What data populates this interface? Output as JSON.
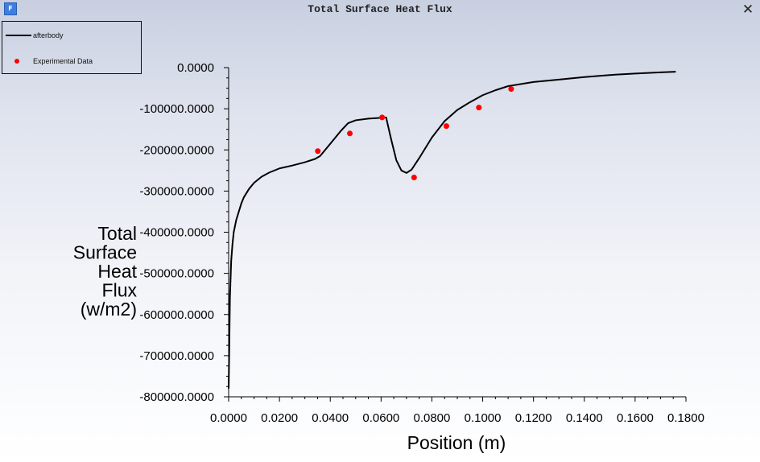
{
  "window": {
    "app_icon_glyph": "F",
    "title": "Total Surface Heat Flux",
    "close_glyph": "✕"
  },
  "legend": [
    {
      "label": "afterbody",
      "marker": "line",
      "color": "#000000"
    },
    {
      "label": "Experimental Data",
      "marker": "dot",
      "color": "#ff0000"
    }
  ],
  "chart_data": {
    "type": "line",
    "title": "Total Surface Heat Flux",
    "xlabel": "Position (m)",
    "ylabel": "Total Surface Heat Flux (w/m2)",
    "ylabel_lines": [
      "Total",
      "Surface",
      "Heat",
      "Flux",
      "(w/m2)"
    ],
    "xlim": [
      0,
      0.18
    ],
    "ylim": [
      -800000,
      0
    ],
    "x_ticks": [
      0,
      0.02,
      0.04,
      0.06,
      0.08,
      0.1,
      0.12,
      0.14,
      0.16,
      0.18
    ],
    "x_tick_labels": [
      "0.0000",
      "0.0200",
      "0.0400",
      "0.0600",
      "0.0800",
      "0.1000",
      "0.1200",
      "0.1400",
      "0.1600",
      "0.1800"
    ],
    "y_ticks": [
      0,
      -100000,
      -200000,
      -300000,
      -400000,
      -500000,
      -600000,
      -700000,
      -800000
    ],
    "y_tick_labels": [
      "0.0000",
      "-100000.0000",
      "-200000.0000",
      "-300000.0000",
      "-400000.0000",
      "-500000.0000",
      "-600000.0000",
      "-700000.0000",
      "-800000.0000"
    ],
    "grid": false,
    "legend_position": "top-left",
    "series": [
      {
        "name": "afterbody",
        "kind": "line",
        "color": "#000000",
        "points": [
          [
            0.0,
            -780000
          ],
          [
            0.0002,
            -700000
          ],
          [
            0.0005,
            -560000
          ],
          [
            0.001,
            -470000
          ],
          [
            0.0015,
            -430000
          ],
          [
            0.002,
            -400000
          ],
          [
            0.003,
            -370000
          ],
          [
            0.004,
            -350000
          ],
          [
            0.005,
            -330000
          ],
          [
            0.006,
            -315000
          ],
          [
            0.008,
            -295000
          ],
          [
            0.01,
            -280000
          ],
          [
            0.013,
            -265000
          ],
          [
            0.016,
            -255000
          ],
          [
            0.02,
            -245000
          ],
          [
            0.025,
            -238000
          ],
          [
            0.03,
            -230000
          ],
          [
            0.034,
            -222000
          ],
          [
            0.036,
            -215000
          ],
          [
            0.04,
            -185000
          ],
          [
            0.044,
            -155000
          ],
          [
            0.047,
            -135000
          ],
          [
            0.05,
            -128000
          ],
          [
            0.055,
            -124000
          ],
          [
            0.06,
            -122000
          ],
          [
            0.062,
            -121000
          ],
          [
            0.0625,
            -135000
          ],
          [
            0.064,
            -175000
          ],
          [
            0.066,
            -225000
          ],
          [
            0.068,
            -250000
          ],
          [
            0.07,
            -256000
          ],
          [
            0.072,
            -248000
          ],
          [
            0.075,
            -220000
          ],
          [
            0.08,
            -170000
          ],
          [
            0.085,
            -130000
          ],
          [
            0.09,
            -103000
          ],
          [
            0.095,
            -84000
          ],
          [
            0.1,
            -67000
          ],
          [
            0.105,
            -55000
          ],
          [
            0.11,
            -45000
          ],
          [
            0.12,
            -35000
          ],
          [
            0.13,
            -29000
          ],
          [
            0.14,
            -23000
          ],
          [
            0.15,
            -18000
          ],
          [
            0.16,
            -14500
          ],
          [
            0.17,
            -11500
          ],
          [
            0.176,
            -10000
          ]
        ]
      },
      {
        "name": "Experimental Data",
        "kind": "scatter",
        "color": "#ff0000",
        "points": [
          [
            0.0351,
            -203000
          ],
          [
            0.0477,
            -160000
          ],
          [
            0.0604,
            -121000
          ],
          [
            0.073,
            -267000
          ],
          [
            0.0857,
            -142000
          ],
          [
            0.0985,
            -97000
          ],
          [
            0.1112,
            -52000
          ]
        ]
      }
    ]
  }
}
